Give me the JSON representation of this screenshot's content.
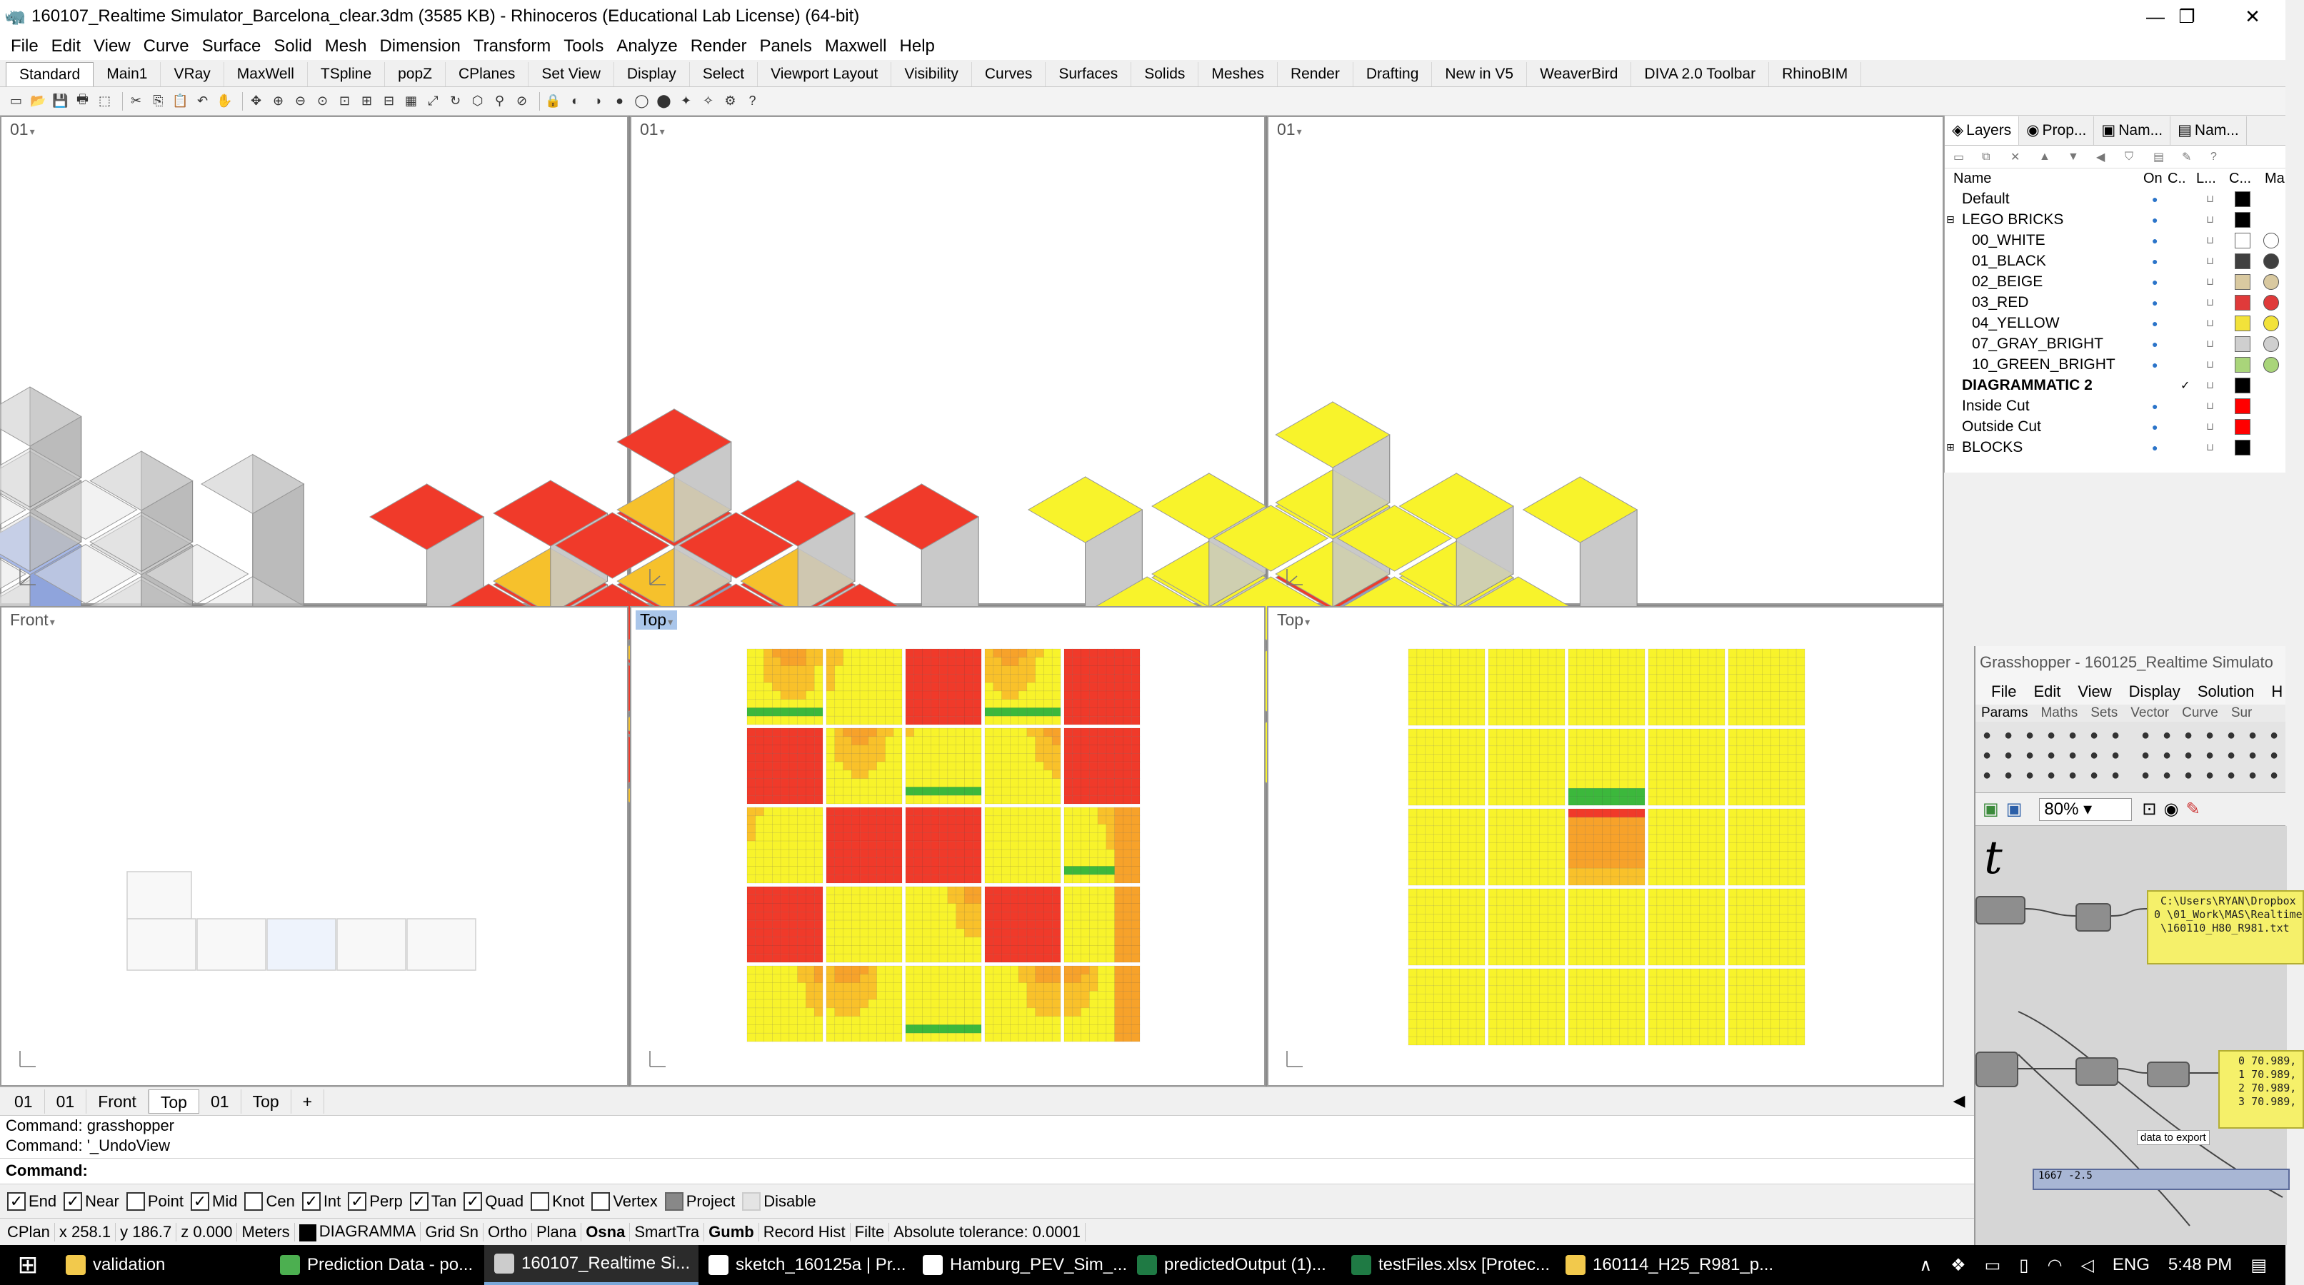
{
  "window": {
    "title": "160107_Realtime Simulator_Barcelona_clear.3dm (3585 KB) - Rhinoceros (Educational Lab License) (64-bit)",
    "minimize": "—",
    "restore": "❐",
    "close": "✕"
  },
  "menu": [
    "File",
    "Edit",
    "View",
    "Curve",
    "Surface",
    "Solid",
    "Mesh",
    "Dimension",
    "Transform",
    "Tools",
    "Analyze",
    "Render",
    "Panels",
    "Maxwell",
    "Help"
  ],
  "tool_tabs": [
    "Standard",
    "Main1",
    "VRay",
    "MaxWell",
    "TSpline",
    "popZ",
    "CPlanes",
    "Set View",
    "Display",
    "Select",
    "Viewport Layout",
    "Visibility",
    "Curves",
    "Surfaces",
    "Solids",
    "Meshes",
    "Render",
    "Drafting",
    "New in V5",
    "WeaverBird",
    "DIVA 2.0 Toolbar",
    "RhinoBIM"
  ],
  "viewports": {
    "tl": {
      "label": "01"
    },
    "tc": {
      "label": "01"
    },
    "tr": {
      "label": "01"
    },
    "bl": {
      "label": "Front"
    },
    "bc": {
      "label": "Top"
    },
    "br": {
      "label": "Top"
    }
  },
  "viewport_tabs": [
    "01",
    "01",
    "Front",
    "Top",
    "01",
    "Top",
    "+"
  ],
  "command": {
    "history": [
      "Command: grasshopper",
      "Command: '_UndoView"
    ],
    "prompt": "Command:"
  },
  "osnap": [
    {
      "label": "End",
      "checked": true
    },
    {
      "label": "Near",
      "checked": true
    },
    {
      "label": "Point",
      "checked": false
    },
    {
      "label": "Mid",
      "checked": true
    },
    {
      "label": "Cen",
      "checked": false
    },
    {
      "label": "Int",
      "checked": true
    },
    {
      "label": "Perp",
      "checked": true
    },
    {
      "label": "Tan",
      "checked": true
    },
    {
      "label": "Quad",
      "checked": true
    },
    {
      "label": "Knot",
      "checked": false
    },
    {
      "label": "Vertex",
      "checked": false
    },
    {
      "label": "Project",
      "checked": false
    },
    {
      "label": "Disable",
      "checked": false
    }
  ],
  "status": {
    "cplane": "CPlan",
    "x": "x 258.1",
    "y": "y 186.7",
    "z": "z 0.000",
    "units": "Meters",
    "layer": "DIAGRAMMA",
    "items": [
      "Grid Sn",
      "Ortho",
      "Plana",
      "Osna",
      "SmartTra",
      "Gumb",
      "Record Hist",
      "Filte"
    ],
    "tolerance": "Absolute tolerance: 0.0001"
  },
  "taskbar": {
    "tasks": [
      {
        "label": "validation",
        "icon": "folder-icon",
        "color": "#f2c94c"
      },
      {
        "label": "Prediction Data - po...",
        "icon": "chrome-icon",
        "color": "#4caf50"
      },
      {
        "label": "160107_Realtime Si...",
        "icon": "rhino-icon",
        "color": "#cccccc"
      },
      {
        "label": "sketch_160125a | Pr...",
        "icon": "processing-icon",
        "color": "#ffffff"
      },
      {
        "label": "Hamburg_PEV_Sim_...",
        "icon": "processing-icon",
        "color": "#ffffff"
      },
      {
        "label": "predictedOutput (1)...",
        "icon": "excel-icon",
        "color": "#1f7a44"
      },
      {
        "label": "testFiles.xlsx  [Protec...",
        "icon": "excel-icon",
        "color": "#1f7a44"
      },
      {
        "label": "160114_H25_R981_p...",
        "icon": "folder-icon",
        "color": "#f2c94c"
      }
    ],
    "lang": "ENG",
    "time": "5:48 PM"
  },
  "layers": {
    "tabs": [
      "Layers",
      "Prop...",
      "Nam...",
      "Nam..."
    ],
    "columns": {
      "name": "Name",
      "on": "On",
      "c": "C..",
      "l": "L...",
      "color": "C...",
      "mat": "Ma"
    },
    "rows": [
      {
        "name": "Default",
        "indent": 0,
        "color": "#000000",
        "mat": null,
        "bold": false
      },
      {
        "name": "LEGO BRICKS",
        "indent": 0,
        "color": "#000000",
        "mat": null,
        "bold": false,
        "expander": "⊟"
      },
      {
        "name": "00_WHITE",
        "indent": 1,
        "color": "#ffffff",
        "mat": "#ffffff",
        "bold": false
      },
      {
        "name": "01_BLACK",
        "indent": 1,
        "color": "#404040",
        "mat": "#404040",
        "bold": false
      },
      {
        "name": "02_BEIGE",
        "indent": 1,
        "color": "#d9c9a0",
        "mat": "#d9c9a0",
        "bold": false
      },
      {
        "name": "03_RED",
        "indent": 1,
        "color": "#e03a3a",
        "mat": "#e03a3a",
        "bold": false
      },
      {
        "name": "04_YELLOW",
        "indent": 1,
        "color": "#f2e23a",
        "mat": "#f2e23a",
        "bold": false
      },
      {
        "name": "07_GRAY_BRIGHT",
        "indent": 1,
        "color": "#cfcfcf",
        "mat": "#cfcfcf",
        "bold": false
      },
      {
        "name": "10_GREEN_BRIGHT",
        "indent": 1,
        "color": "#a9d57a",
        "mat": "#a9d57a",
        "bold": false
      },
      {
        "name": "DIAGRAMMATIC 2",
        "indent": 0,
        "color": "#000000",
        "mat": null,
        "bold": true,
        "current": "✓"
      },
      {
        "name": "Inside Cut",
        "indent": 0,
        "color": "#ff0000",
        "mat": null,
        "bold": false
      },
      {
        "name": "Outside Cut",
        "indent": 0,
        "color": "#ff0000",
        "mat": null,
        "bold": false
      },
      {
        "name": "BLOCKS",
        "indent": 0,
        "color": "#000000",
        "mat": null,
        "bold": false,
        "expander": "⊞"
      }
    ]
  },
  "grasshopper": {
    "title": "Grasshopper - 160125_Realtime Simulato",
    "menu": [
      "File",
      "Edit",
      "View",
      "Display",
      "Solution",
      "H"
    ],
    "tabs": [
      "Params",
      "Maths",
      "Sets",
      "Vector",
      "Curve",
      "Sur"
    ],
    "zoom": "80%",
    "canvas_glyph": "t",
    "panel1": " C:\\Users\\RYAN\\Dropbox\n0 \\01_Work\\MAS\\Realtime\n \\160110_H80_R981.txt",
    "panel2": "  0 70.989,\n  1 70.989,\n  2 70.989,\n  3 70.989,",
    "node_label": "data to export",
    "node_footer": "1667 -2.5"
  },
  "colors": {
    "red": "#f03a2a",
    "yellow": "#f8f32b",
    "green": "#3cb83c",
    "orange": "#f7a22a",
    "accent": "#aac6ea"
  }
}
